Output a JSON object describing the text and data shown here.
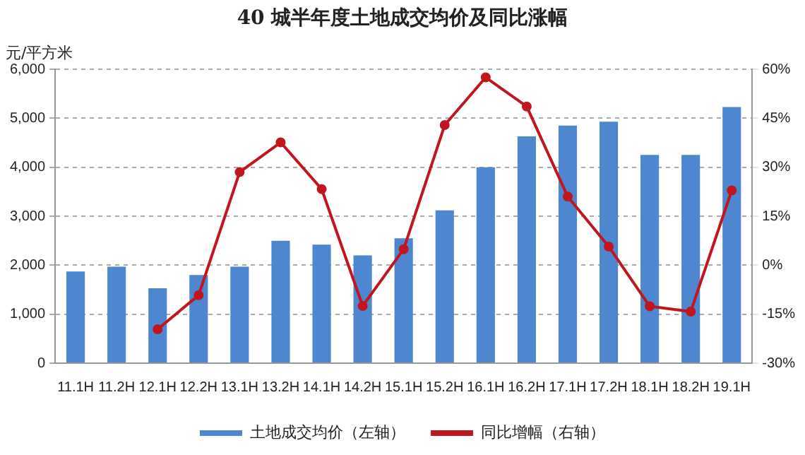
{
  "chart_data": {
    "type": "bar",
    "title": "40 城半年度土地成交均价及同比涨幅",
    "ylabel": "元/平方米",
    "categories": [
      "11.1H",
      "11.2H",
      "12.1H",
      "12.2H",
      "13.1H",
      "13.2H",
      "14.1H",
      "14.2H",
      "15.1H",
      "15.2H",
      "16.1H",
      "16.2H",
      "17.1H",
      "17.2H",
      "18.1H",
      "18.2H",
      "19.1H"
    ],
    "series": [
      {
        "name": "土地成交均价（左轴）",
        "color": "#4f86d0",
        "values": [
          1870,
          1970,
          1530,
          1800,
          1970,
          2500,
          2420,
          2200,
          2550,
          3120,
          4000,
          4630,
          4850,
          4930,
          4250,
          4250,
          5230
        ]
      },
      {
        "name": "同比增幅（右轴）",
        "type": "line",
        "axis": "y2",
        "color": "#c0161e",
        "marker": "circle",
        "values": [
          null,
          null,
          -19.6,
          -9.2,
          28.5,
          37.6,
          23.3,
          -12.5,
          4.9,
          42.9,
          57.5,
          48.6,
          21,
          5.7,
          -12.6,
          -14.2,
          22.9
        ]
      }
    ],
    "ylim": [
      0,
      6000
    ],
    "yticks": [
      0,
      {
        "value": 1000,
        "label": "1,000"
      },
      {
        "value": 2000,
        "label": "2,000"
      },
      {
        "value": 3000,
        "label": "3,000"
      },
      {
        "value": 4000,
        "label": "4,000"
      },
      {
        "value": 5000,
        "label": "5,000"
      },
      {
        "value": 6000,
        "label": "6,000"
      }
    ],
    "y2lim": [
      -30,
      60
    ],
    "y2ticks": [
      {
        "value": -30,
        "label": "-30%"
      },
      {
        "value": -15,
        "label": "-15%"
      },
      {
        "value": 0,
        "label": "0%"
      },
      {
        "value": 15,
        "label": "15%"
      },
      {
        "value": 30,
        "label": "30%"
      },
      {
        "value": 45,
        "label": "45%"
      },
      {
        "value": 60,
        "label": "60%"
      }
    ],
    "grid": "y",
    "legend": "bottom"
  }
}
